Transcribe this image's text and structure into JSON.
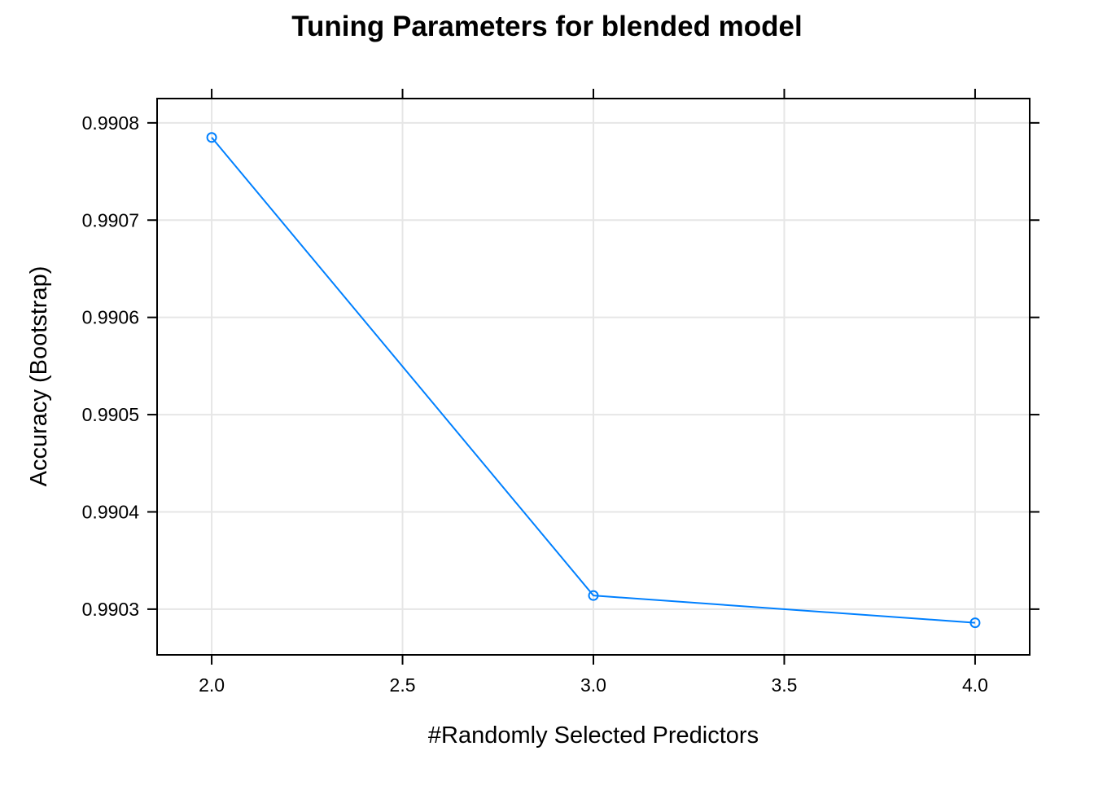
{
  "chart_data": {
    "type": "line",
    "title": "Tuning Parameters for blended model",
    "xlabel": "#Randomly Selected Predictors",
    "ylabel": "Accuracy (Bootstrap)",
    "xlim": [
      1.857,
      4.143
    ],
    "ylim": [
      0.990253,
      0.990825
    ],
    "x_ticks": [
      2.0,
      2.5,
      3.0,
      3.5,
      4.0
    ],
    "x_tick_labels": [
      "2.0",
      "2.5",
      "3.0",
      "3.5",
      "4.0"
    ],
    "y_ticks": [
      0.9903,
      0.9904,
      0.9905,
      0.9906,
      0.9907,
      0.9908
    ],
    "y_tick_labels": [
      "0.9903",
      "0.9904",
      "0.9905",
      "0.9906",
      "0.9907",
      "0.9908"
    ],
    "grid": true,
    "series": [
      {
        "color": "#0080ff",
        "marker": "open-circle",
        "x": [
          2.0,
          3.0,
          4.0
        ],
        "y": [
          0.990785,
          0.990314,
          0.990286
        ]
      }
    ]
  }
}
